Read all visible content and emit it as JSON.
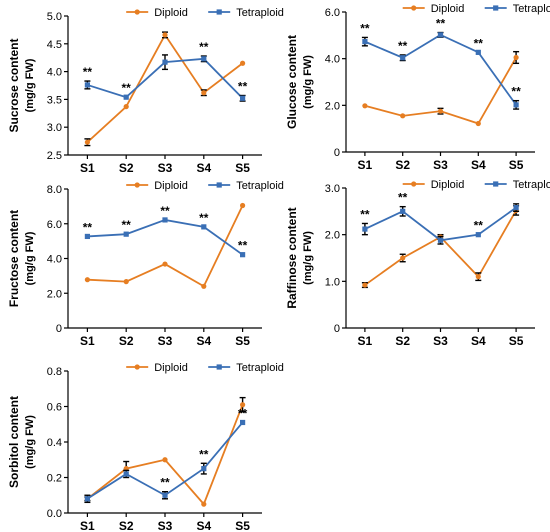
{
  "colors": {
    "diploid": "#E67E22",
    "tetraploid": "#3A6FB5",
    "axis": "#000000"
  },
  "chart_data": [
    {
      "type": "line",
      "ylabel": [
        "Sucrose content",
        "(mg/g FW)"
      ],
      "ylim": [
        2.5,
        5.0
      ],
      "yticks": [
        2.5,
        3.0,
        3.5,
        4.0,
        4.5,
        5.0
      ],
      "ytick_labels": [
        "2.5",
        "3.0",
        "3.5",
        "4.0",
        "4.5",
        "5.0"
      ],
      "categories": [
        "S1",
        "S2",
        "S3",
        "S4",
        "S5"
      ],
      "legend_position": "top",
      "series": [
        {
          "name": "Diploid",
          "values": [
            2.73,
            3.37,
            4.66,
            3.62,
            4.15
          ],
          "errors": [
            0.06,
            0.0,
            0.05,
            0.05,
            0.0
          ]
        },
        {
          "name": "Tetraploid",
          "values": [
            3.76,
            3.54,
            4.17,
            4.23,
            3.52
          ],
          "errors": [
            0.07,
            0.0,
            0.13,
            0.05,
            0.05
          ]
        }
      ],
      "significance": [
        "**",
        "**",
        "",
        "**",
        "**"
      ],
      "sig_series": [
        1,
        1,
        null,
        1,
        1
      ]
    },
    {
      "type": "line",
      "ylabel": [
        "Glucose content",
        "(mg/g FW)"
      ],
      "ylim": [
        0,
        6.0
      ],
      "yticks": [
        0,
        2,
        4,
        6
      ],
      "ytick_labels": [
        "0",
        "2.0",
        "4.0",
        "6.0"
      ],
      "categories": [
        "S1",
        "S2",
        "S3",
        "S4",
        "S5"
      ],
      "legend_position": "top",
      "series": [
        {
          "name": "Diploid",
          "values": [
            1.98,
            1.55,
            1.75,
            1.22,
            4.05
          ],
          "errors": [
            0.0,
            0.0,
            0.12,
            0.0,
            0.25
          ]
        },
        {
          "name": "Tetraploid",
          "values": [
            4.73,
            4.04,
            5.02,
            4.27,
            2.02
          ],
          "errors": [
            0.18,
            0.12,
            0.1,
            0.0,
            0.18
          ]
        }
      ],
      "significance": [
        "**",
        "**",
        "**",
        "**",
        "**"
      ],
      "sig_series": [
        1,
        1,
        1,
        1,
        1
      ]
    },
    {
      "type": "line",
      "ylabel": [
        "Fructose content",
        "(mg/g FW)"
      ],
      "ylim": [
        0,
        8.0
      ],
      "yticks": [
        0,
        2,
        4,
        6,
        8
      ],
      "ytick_labels": [
        "0",
        "2.0",
        "4.0",
        "6.0",
        "8.0"
      ],
      "categories": [
        "S1",
        "S2",
        "S3",
        "S4",
        "S5"
      ],
      "legend_position": "top",
      "series": [
        {
          "name": "Diploid",
          "values": [
            2.78,
            2.67,
            3.68,
            2.4,
            7.05
          ],
          "errors": [
            0,
            0,
            0,
            0,
            0
          ]
        },
        {
          "name": "Tetraploid",
          "values": [
            5.27,
            5.4,
            6.22,
            5.82,
            4.22
          ],
          "errors": [
            0,
            0,
            0,
            0,
            0
          ]
        }
      ],
      "significance": [
        "**",
        "**",
        "**",
        "**",
        "**"
      ],
      "sig_series": [
        1,
        1,
        1,
        1,
        1
      ]
    },
    {
      "type": "line",
      "ylabel": [
        "Raffinose content",
        "(mg/g FW)"
      ],
      "ylim": [
        0,
        3.0
      ],
      "yticks": [
        0,
        1,
        2,
        3
      ],
      "ytick_labels": [
        "0",
        "1.0",
        "2.0",
        "3.0"
      ],
      "categories": [
        "S1",
        "S2",
        "S3",
        "S4",
        "S5"
      ],
      "legend_position": "top",
      "series": [
        {
          "name": "Diploid",
          "values": [
            0.92,
            1.5,
            1.95,
            1.1,
            2.52
          ],
          "errors": [
            0.05,
            0.08,
            0.05,
            0.08,
            0.1
          ]
        },
        {
          "name": "Tetraploid",
          "values": [
            2.12,
            2.5,
            1.88,
            2.0,
            2.58
          ],
          "errors": [
            0.12,
            0.1,
            0.08,
            0.0,
            0.08
          ]
        }
      ],
      "significance": [
        "**",
        "**",
        "",
        "**",
        ""
      ],
      "sig_series": [
        1,
        1,
        null,
        1,
        null
      ]
    },
    {
      "type": "line",
      "ylabel": [
        "Sorbitol content",
        "(mg/g FW)"
      ],
      "ylim": [
        0,
        0.8
      ],
      "yticks": [
        0,
        0.2,
        0.4,
        0.6,
        0.8
      ],
      "ytick_labels": [
        "0.0",
        "0.2",
        "0.4",
        "0.6",
        "0.8"
      ],
      "categories": [
        "S1",
        "S2",
        "S3",
        "S4",
        "S5"
      ],
      "legend_position": "top",
      "series": [
        {
          "name": "Diploid",
          "values": [
            0.08,
            0.25,
            0.3,
            0.05,
            0.61
          ],
          "errors": [
            0.01,
            0.04,
            0.0,
            0.0,
            0.04
          ]
        },
        {
          "name": "Tetraploid",
          "values": [
            0.08,
            0.22,
            0.1,
            0.25,
            0.51
          ],
          "errors": [
            0.02,
            0.02,
            0.02,
            0.03,
            0.0
          ]
        }
      ],
      "significance": [
        "",
        "",
        "**",
        "**",
        "**"
      ],
      "sig_series": [
        null,
        null,
        1,
        1,
        1
      ]
    }
  ]
}
